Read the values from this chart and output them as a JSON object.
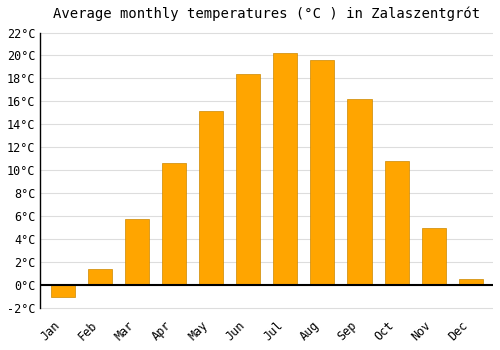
{
  "title": "Average monthly temperatures (°C ) in Zalaszentgrót",
  "months": [
    "Jan",
    "Feb",
    "Mar",
    "Apr",
    "May",
    "Jun",
    "Jul",
    "Aug",
    "Sep",
    "Oct",
    "Nov",
    "Dec"
  ],
  "values": [
    -1.0,
    1.4,
    5.8,
    10.6,
    15.2,
    18.4,
    20.2,
    19.6,
    16.2,
    10.8,
    5.0,
    0.5
  ],
  "bar_color": "#FFA500",
  "bar_edge_color": "#CC8800",
  "ylim": [
    -2.5,
    22.5
  ],
  "yticks": [
    -2,
    0,
    2,
    4,
    6,
    8,
    10,
    12,
    14,
    16,
    18,
    20,
    22
  ],
  "background_color": "#ffffff",
  "grid_color": "#dddddd",
  "title_fontsize": 10,
  "tick_fontsize": 8.5,
  "font_family": "monospace"
}
